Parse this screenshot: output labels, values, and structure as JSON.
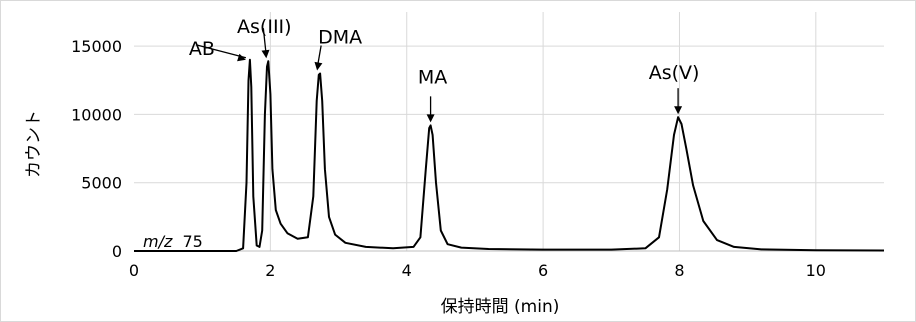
{
  "chart_data": {
    "type": "line",
    "xlabel": "保持時間 (min)",
    "ylabel": "カウント",
    "xlim": [
      0,
      11
    ],
    "ylim": [
      0,
      17500
    ],
    "xticks": [
      0,
      2,
      4,
      6,
      8,
      10
    ],
    "yticks": [
      0,
      5000,
      10000,
      15000
    ],
    "xtick_labels": [
      "0",
      "2",
      "4",
      "6",
      "8",
      "10"
    ],
    "ytick_labels": [
      "0",
      "5000",
      "10000",
      "15000"
    ],
    "grid": true,
    "legend": "none",
    "annotation_inset": {
      "mz_italic": "m/z",
      "mz_value": "75"
    },
    "peaks": [
      {
        "label": "AB",
        "x": 1.7,
        "y": 14000
      },
      {
        "label": "As(III)",
        "x": 1.97,
        "y": 13900
      },
      {
        "label": "DMA",
        "x": 2.73,
        "y": 13000
      },
      {
        "label": "MA",
        "x": 4.35,
        "y": 9200
      },
      {
        "label": "As(V)",
        "x": 7.98,
        "y": 9800
      }
    ],
    "series": [
      {
        "x": [
          0,
          1.5,
          1.6,
          1.65,
          1.68,
          1.7,
          1.72,
          1.75,
          1.8,
          1.84,
          1.88,
          1.92,
          1.95,
          1.97,
          2.0,
          2.03,
          2.08,
          2.15,
          2.25,
          2.4,
          2.55,
          2.63,
          2.68,
          2.71,
          2.73,
          2.76,
          2.8,
          2.86,
          2.95,
          3.1,
          3.4,
          3.8,
          4.1,
          4.2,
          4.28,
          4.33,
          4.35,
          4.38,
          4.43,
          4.5,
          4.6,
          4.8,
          5.2,
          6.0,
          7.0,
          7.5,
          7.7,
          7.82,
          7.92,
          7.98,
          8.03,
          8.1,
          8.2,
          8.35,
          8.55,
          8.8,
          9.2,
          10.0,
          11.0
        ],
        "y": [
          0,
          0,
          200,
          5000,
          12500,
          14000,
          12000,
          4000,
          400,
          300,
          1500,
          10000,
          13500,
          13900,
          11500,
          6000,
          3000,
          2000,
          1300,
          900,
          1000,
          4000,
          11000,
          12900,
          13000,
          11000,
          6000,
          2500,
          1200,
          600,
          300,
          200,
          300,
          1000,
          6000,
          9000,
          9200,
          8500,
          5000,
          1500,
          500,
          250,
          150,
          100,
          100,
          200,
          1000,
          4500,
          8500,
          9800,
          9300,
          7500,
          4800,
          2200,
          800,
          300,
          120,
          60,
          40
        ]
      }
    ]
  }
}
